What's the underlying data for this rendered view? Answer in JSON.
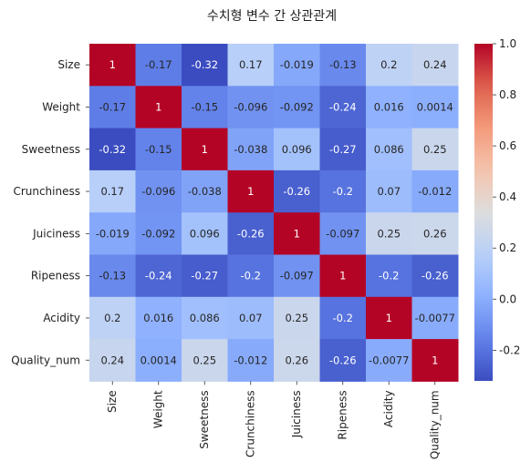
{
  "chart_data": {
    "type": "heatmap",
    "title": "수치형 변수 간 상관관계",
    "xlabel": "",
    "ylabel": "",
    "categories": [
      "Size",
      "Weight",
      "Sweetness",
      "Crunchiness",
      "Juiciness",
      "Ripeness",
      "Acidity",
      "Quality_num"
    ],
    "values": [
      [
        1,
        -0.17,
        -0.32,
        0.17,
        -0.019,
        -0.13,
        0.2,
        0.24
      ],
      [
        -0.17,
        1,
        -0.15,
        -0.096,
        -0.092,
        -0.24,
        0.016,
        0.0014
      ],
      [
        -0.32,
        -0.15,
        1,
        -0.038,
        0.096,
        -0.27,
        0.086,
        0.25
      ],
      [
        0.17,
        -0.096,
        -0.038,
        1,
        -0.26,
        -0.2,
        0.07,
        -0.012
      ],
      [
        -0.019,
        -0.092,
        0.096,
        -0.26,
        1,
        -0.097,
        0.25,
        0.26
      ],
      [
        -0.13,
        -0.24,
        -0.27,
        -0.2,
        -0.097,
        1,
        -0.2,
        -0.26
      ],
      [
        0.2,
        0.016,
        0.086,
        0.07,
        0.25,
        -0.2,
        1,
        -0.0077
      ],
      [
        0.24,
        0.0014,
        0.25,
        -0.012,
        0.26,
        -0.26,
        -0.0077,
        1
      ]
    ],
    "labels": [
      [
        "1",
        "-0.17",
        "-0.32",
        "0.17",
        "-0.019",
        "-0.13",
        "0.2",
        "0.24"
      ],
      [
        "-0.17",
        "1",
        "-0.15",
        "-0.096",
        "-0.092",
        "-0.24",
        "0.016",
        "0.0014"
      ],
      [
        "-0.32",
        "-0.15",
        "1",
        "-0.038",
        "0.096",
        "-0.27",
        "0.086",
        "0.25"
      ],
      [
        "0.17",
        "-0.096",
        "-0.038",
        "1",
        "-0.26",
        "-0.2",
        "0.07",
        "-0.012"
      ],
      [
        "-0.019",
        "-0.092",
        "0.096",
        "-0.26",
        "1",
        "-0.097",
        "0.25",
        "0.26"
      ],
      [
        "-0.13",
        "-0.24",
        "-0.27",
        "-0.2",
        "-0.097",
        "1",
        "-0.2",
        "-0.26"
      ],
      [
        "0.2",
        "0.016",
        "0.086",
        "0.07",
        "0.25",
        "-0.2",
        "1",
        "-0.0077"
      ],
      [
        "0.24",
        "0.0014",
        "0.25",
        "-0.012",
        "0.26",
        "-0.26",
        "-0.0077",
        "1"
      ]
    ],
    "colormap": "coolwarm",
    "vmin": -0.32,
    "vmax": 1,
    "colorbar_ticks": [
      -0.2,
      0.0,
      0.2,
      0.4,
      0.6,
      0.8,
      1.0
    ],
    "colorbar_tick_labels": [
      "-0.2",
      "0.0",
      "0.2",
      "0.4",
      "0.6",
      "0.8",
      "1.0"
    ],
    "colorbar_position": "right",
    "grid": false
  }
}
